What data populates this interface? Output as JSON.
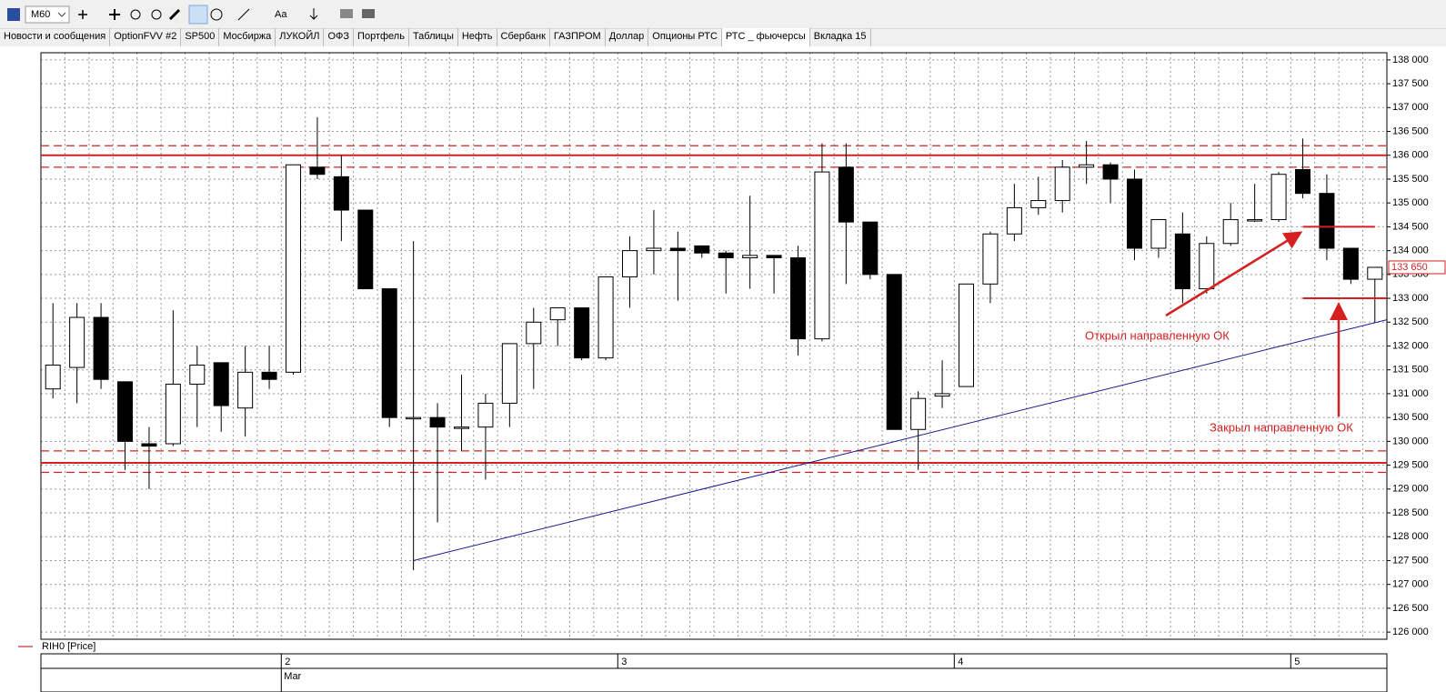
{
  "toolbar": {
    "timeframe": "M60",
    "font_button": "Aa"
  },
  "tabs": [
    "Новости и сообщения",
    "OptionFVV #2",
    "SP500",
    "Мосбиржа",
    "ЛУКОЙЛ",
    "ОФЗ",
    "Портфель",
    "Таблицы",
    "Нефть",
    "Сбербанк",
    "ГАЗПРОМ",
    "Доллар",
    "Опционы РТС",
    "РТС _ фьючерсы",
    "Вкладка 15"
  ],
  "active_tab": 13,
  "chart_data": {
    "type": "candlestick",
    "categories": [
      null,
      null,
      null,
      null,
      null,
      null,
      null,
      null,
      null,
      null,
      "2",
      null,
      null,
      null,
      null,
      null,
      null,
      null,
      null,
      null,
      null,
      null,
      null,
      null,
      "3",
      null,
      null,
      null,
      null,
      null,
      null,
      null,
      null,
      null,
      null,
      null,
      null,
      null,
      "4",
      null,
      null,
      null,
      null,
      null,
      null,
      null,
      null,
      null,
      null,
      null,
      null,
      null,
      "5",
      null,
      null,
      null
    ],
    "month_label": "Mar",
    "series": [
      {
        "name": "RIH0 [Price]",
        "color": "#c00000",
        "up_color": "#ffffff",
        "down_color": "#000000",
        "open": [
          131100,
          131550,
          132600,
          131250,
          129950,
          129950,
          131200,
          131650,
          130700,
          131450,
          131450,
          135750,
          135550,
          134850,
          133200,
          130500,
          130500,
          130300,
          130300,
          130800,
          132050,
          132550,
          132800,
          131750,
          133450,
          134000,
          134050,
          134100,
          133950,
          133850,
          133900,
          133850,
          132150,
          135750,
          134600,
          133500,
          130250,
          130950,
          131150,
          133300,
          134350,
          134900,
          135050,
          135750,
          135800,
          135500,
          134050,
          134350,
          133200,
          134150,
          134650,
          134650,
          135700,
          135200,
          134050,
          133400
        ],
        "high": [
          132900,
          132900,
          132900,
          131250,
          130300,
          132750,
          132000,
          131650,
          132000,
          132000,
          135800,
          136800,
          136000,
          134850,
          133200,
          134200,
          130800,
          131400,
          131000,
          132050,
          132800,
          132800,
          132800,
          133450,
          134300,
          134850,
          134400,
          134100,
          134000,
          135150,
          133900,
          134100,
          136250,
          136250,
          134600,
          133500,
          131050,
          131700,
          133300,
          134400,
          135400,
          135550,
          135900,
          136300,
          135850,
          135700,
          134650,
          134800,
          134300,
          135000,
          135400,
          135650,
          136350,
          135600,
          134050,
          133650
        ],
        "low": [
          130900,
          130800,
          131100,
          129400,
          129000,
          129900,
          130300,
          130200,
          130100,
          131100,
          131400,
          135500,
          134200,
          133200,
          130300,
          127300,
          128300,
          129800,
          129200,
          130300,
          131100,
          132000,
          131700,
          131700,
          132800,
          133500,
          132950,
          133850,
          133100,
          133200,
          133100,
          131800,
          132100,
          133300,
          133400,
          130250,
          129400,
          130700,
          131150,
          132900,
          134200,
          134750,
          134800,
          135400,
          135000,
          133800,
          133850,
          132900,
          133100,
          134100,
          134600,
          134600,
          135100,
          133800,
          133300,
          132500
        ],
        "close": [
          131600,
          132600,
          131300,
          130000,
          129900,
          131200,
          131600,
          130750,
          131450,
          131300,
          135800,
          135600,
          134850,
          133200,
          130500,
          130500,
          130300,
          130300,
          130800,
          132050,
          132500,
          132800,
          131750,
          133450,
          134000,
          134050,
          134000,
          133950,
          133850,
          133900,
          133850,
          132150,
          135650,
          134600,
          133500,
          130250,
          130900,
          131000,
          133300,
          134350,
          134900,
          135050,
          135750,
          135800,
          135500,
          134050,
          134650,
          133200,
          134150,
          134650,
          134650,
          135600,
          135200,
          134050,
          133400,
          133650
        ]
      }
    ],
    "ylim": [
      125850,
      138150
    ],
    "yticks": [
      {
        "value": 126000,
        "label": "126 000"
      },
      {
        "value": 126500,
        "label": "126 500"
      },
      {
        "value": 127000,
        "label": "127 000"
      },
      {
        "value": 127500,
        "label": "127 500"
      },
      {
        "value": 128000,
        "label": "128 000"
      },
      {
        "value": 128500,
        "label": "128 500"
      },
      {
        "value": 129000,
        "label": "129 000"
      },
      {
        "value": 129500,
        "label": "129 500"
      },
      {
        "value": 130000,
        "label": "130 000"
      },
      {
        "value": 130500,
        "label": "130 500"
      },
      {
        "value": 131000,
        "label": "131 000"
      },
      {
        "value": 131500,
        "label": "131 500"
      },
      {
        "value": 132000,
        "label": "132 000"
      },
      {
        "value": 132500,
        "label": "132 500"
      },
      {
        "value": 133000,
        "label": "133 000"
      },
      {
        "value": 133500,
        "label": "133 500"
      },
      {
        "value": 134000,
        "label": "134 000"
      },
      {
        "value": 134500,
        "label": "134 500"
      },
      {
        "value": 135000,
        "label": "135 000"
      },
      {
        "value": 135500,
        "label": "135 500"
      },
      {
        "value": 136000,
        "label": "136 000"
      },
      {
        "value": 136500,
        "label": "136 500"
      },
      {
        "value": 137000,
        "label": "137 000"
      },
      {
        "value": 137500,
        "label": "137 500"
      },
      {
        "value": 138000,
        "label": "138 000"
      }
    ],
    "grid": true,
    "last_price": {
      "value": 133650,
      "label": "133 650"
    },
    "levels": [
      {
        "value": 136000,
        "style": "solid"
      },
      {
        "value": 136200,
        "style": "dashed"
      },
      {
        "value": 135750,
        "style": "dashed"
      },
      {
        "value": 129550,
        "style": "solid"
      },
      {
        "value": 129800,
        "style": "dashed"
      },
      {
        "value": 129350,
        "style": "dashed"
      }
    ],
    "level_color": "#d42020",
    "trendline": {
      "x": [
        15,
        55.5
      ],
      "y": [
        127500,
        132550
      ],
      "color": "#1a1a8c"
    },
    "segments": [
      {
        "x": [
          52,
          55
        ],
        "y": [
          134500,
          134500
        ]
      },
      {
        "x": [
          52,
          55.5
        ],
        "y": [
          133000,
          133000
        ]
      }
    ],
    "annotations": [
      "Открыл направленную ОК",
      "Закрыл направленную ОК"
    ]
  }
}
